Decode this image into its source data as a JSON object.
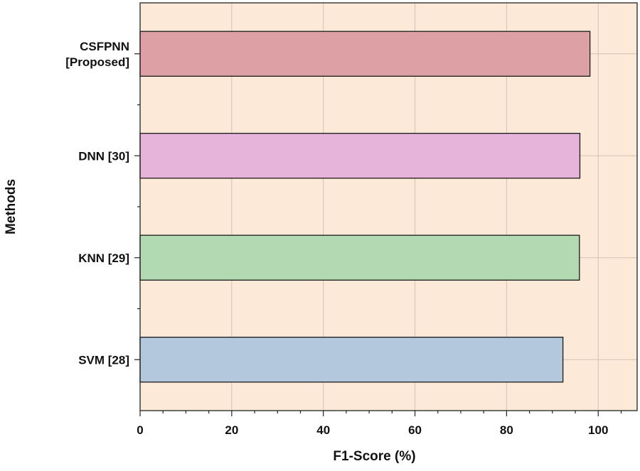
{
  "chart_data": {
    "type": "bar",
    "orientation": "horizontal",
    "categories": [
      [
        "CSFPNN",
        "[Proposed]"
      ],
      [
        "DNN [30]"
      ],
      [
        "KNN [29]"
      ],
      [
        "SVM [28]"
      ]
    ],
    "values": [
      98.2,
      96.0,
      95.9,
      92.3
    ],
    "bar_colors": [
      "#dda0a4",
      "#e6b3da",
      "#b3d9b3",
      "#b3c8dc"
    ],
    "xlabel": "F1-Score (%)",
    "ylabel": "Methods",
    "xlim": [
      0,
      108.5
    ],
    "xticks": [
      0,
      20,
      40,
      60,
      80,
      100
    ],
    "x_minor_step": 5,
    "grid": true,
    "background_color": "#fde9d8",
    "grid_color": "#cfc2b6"
  }
}
